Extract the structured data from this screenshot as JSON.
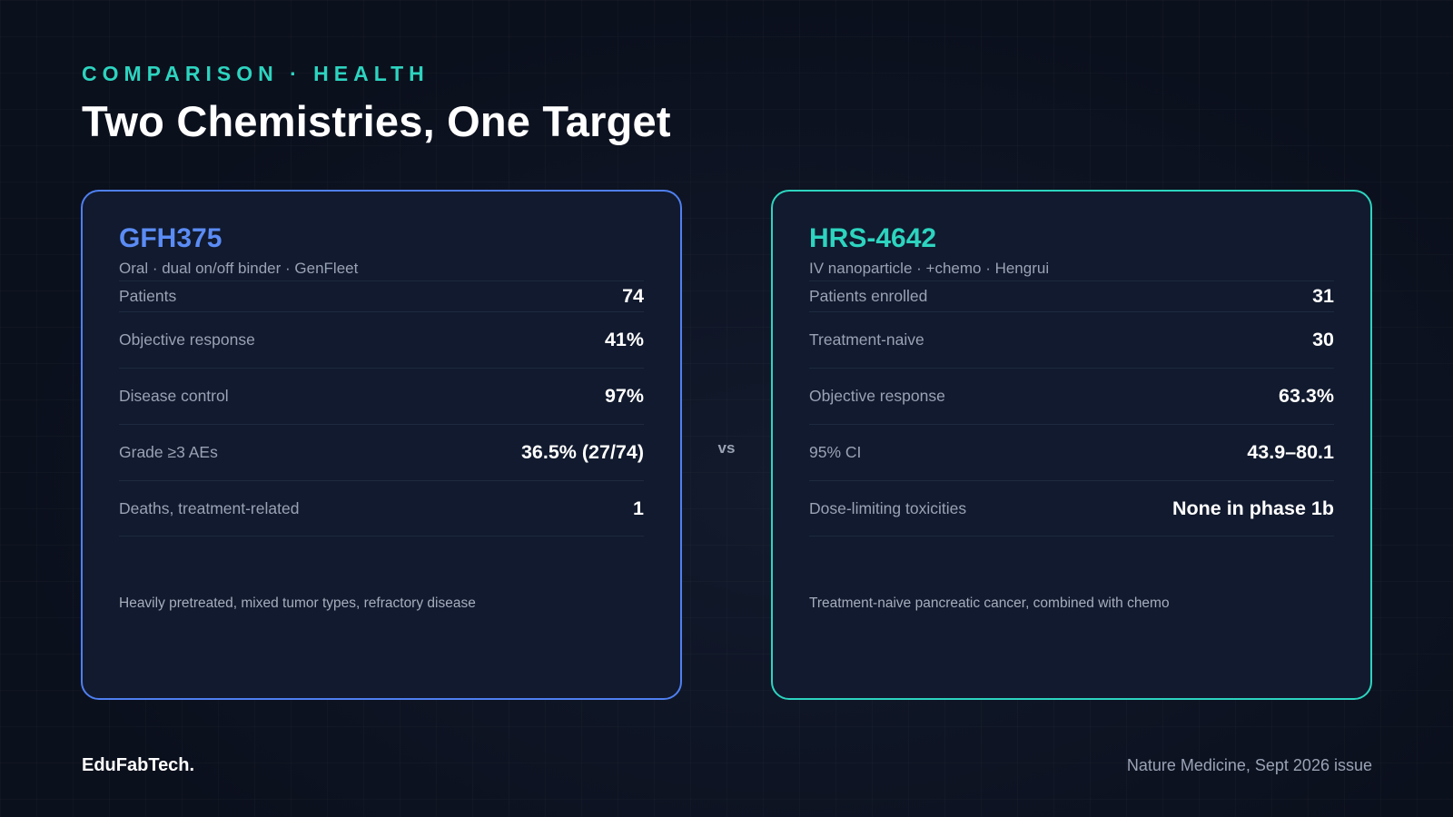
{
  "header": {
    "eyebrow": "COMPARISON · HEALTH",
    "title": "Two Chemistries, One Target"
  },
  "colors": {
    "background": "#0c1120",
    "card_background": "#111a2e",
    "left_accent": "#5b8cf5",
    "right_accent": "#2dd4bf",
    "muted_text": "#9aa3b5"
  },
  "left_card": {
    "name": "GFH375",
    "subtitle": "Oral · dual on/off binder · GenFleet",
    "rows": [
      {
        "label": "Patients",
        "value": "74"
      },
      {
        "label": "Objective response",
        "value": "41%"
      },
      {
        "label": "Disease control",
        "value": "97%"
      },
      {
        "label": "Grade ≥3 AEs",
        "value": "36.5% (27/74)"
      },
      {
        "label": "Deaths, treatment-related",
        "value": "1"
      }
    ],
    "note": "Heavily pretreated, mixed tumor types, refractory disease"
  },
  "vs_label": "vs",
  "right_card": {
    "name": "HRS-4642",
    "subtitle": "IV nanoparticle · +chemo · Hengrui",
    "rows": [
      {
        "label": "Patients enrolled",
        "value": "31"
      },
      {
        "label": "Treatment-naive",
        "value": "30"
      },
      {
        "label": "Objective response",
        "value": "63.3%"
      },
      {
        "label": "95% CI",
        "value": "43.9–80.1"
      },
      {
        "label": "Dose-limiting toxicities",
        "value": "None in phase 1b"
      }
    ],
    "note": "Treatment-naive pancreatic cancer, combined with chemo"
  },
  "footer": {
    "brand": "EduFabTech.",
    "source": "Nature Medicine, Sept 2026 issue"
  }
}
